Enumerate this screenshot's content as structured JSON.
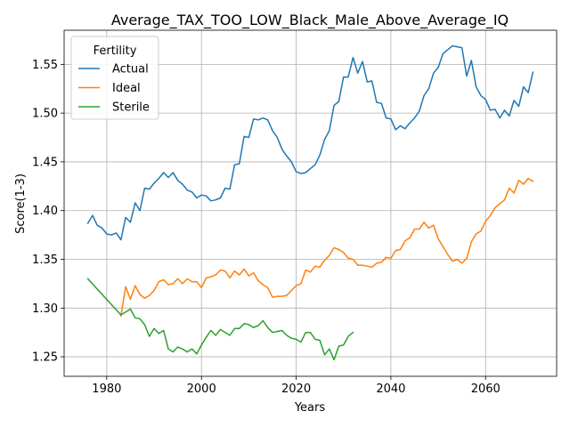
{
  "chart_data": {
    "type": "line",
    "title": "Average_TAX_TOO_LOW_Black_Male_Above_Average_IQ",
    "xlabel": "Years",
    "ylabel": "Score(1-3)",
    "xlim": [
      1971,
      2075
    ],
    "ylim": [
      1.23,
      1.585
    ],
    "xticks": [
      1980,
      2000,
      2020,
      2040,
      2060
    ],
    "yticks": [
      1.25,
      1.3,
      1.35,
      1.4,
      1.45,
      1.5,
      1.55
    ],
    "ytick_labels": [
      "1.25",
      "1.30",
      "1.35",
      "1.40",
      "1.45",
      "1.50",
      "1.55"
    ],
    "grid": true,
    "legend": {
      "title": "Fertility",
      "placement": "top-left"
    },
    "series": [
      {
        "name": "Actual",
        "color": "#1f77b4",
        "x": [
          1976,
          1977,
          1978,
          1979,
          1980,
          1981,
          1982,
          1983,
          1984,
          1985,
          1986,
          1987,
          1988,
          1989,
          1990,
          1991,
          1992,
          1993,
          1994,
          1995,
          1996,
          1997,
          1998,
          1999,
          2000,
          2001,
          2002,
          2003,
          2004,
          2005,
          2006,
          2007,
          2008,
          2009,
          2010,
          2011,
          2012,
          2013,
          2014,
          2015,
          2016,
          2017,
          2018,
          2019,
          2020,
          2021,
          2022,
          2023,
          2024,
          2025,
          2026,
          2027,
          2028,
          2029,
          2030,
          2031,
          2032,
          2033,
          2034,
          2035,
          2036,
          2037,
          2038,
          2039,
          2040,
          2041,
          2042,
          2043,
          2044,
          2045,
          2046,
          2047,
          2048,
          2049,
          2050,
          2051,
          2052,
          2053,
          2054,
          2055,
          2056,
          2057,
          2058,
          2059,
          2060,
          2061,
          2062,
          2063,
          2064,
          2065,
          2066,
          2067,
          2068,
          2069,
          2070
        ],
        "y": [
          1.387,
          1.395,
          1.385,
          1.382,
          1.376,
          1.375,
          1.377,
          1.37,
          1.393,
          1.388,
          1.408,
          1.4,
          1.423,
          1.422,
          1.428,
          1.433,
          1.439,
          1.434,
          1.439,
          1.431,
          1.427,
          1.421,
          1.419,
          1.413,
          1.416,
          1.415,
          1.41,
          1.411,
          1.413,
          1.423,
          1.422,
          1.447,
          1.448,
          1.476,
          1.475,
          1.494,
          1.493,
          1.495,
          1.493,
          1.482,
          1.475,
          1.463,
          1.456,
          1.45,
          1.44,
          1.438,
          1.439,
          1.443,
          1.447,
          1.457,
          1.473,
          1.482,
          1.508,
          1.512,
          1.537,
          1.537,
          1.557,
          1.541,
          1.553,
          1.532,
          1.533,
          1.511,
          1.51,
          1.495,
          1.494,
          1.483,
          1.487,
          1.484,
          1.49,
          1.495,
          1.502,
          1.518,
          1.525,
          1.541,
          1.547,
          1.561,
          1.565,
          1.569,
          1.568,
          1.567,
          1.538,
          1.554,
          1.527,
          1.518,
          1.514,
          1.503,
          1.504,
          1.495,
          1.503,
          1.497,
          1.513,
          1.507,
          1.527,
          1.521,
          1.542
        ]
      },
      {
        "name": "Ideal",
        "color": "#ff7f0e",
        "x": [
          1983,
          1984,
          1985,
          1986,
          1987,
          1988,
          1989,
          1990,
          1991,
          1992,
          1993,
          1994,
          1995,
          1996,
          1997,
          1998,
          1999,
          2000,
          2001,
          2002,
          2003,
          2004,
          2005,
          2006,
          2007,
          2008,
          2009,
          2010,
          2011,
          2012,
          2013,
          2014,
          2015,
          2016,
          2017,
          2018,
          2019,
          2020,
          2021,
          2022,
          2023,
          2024,
          2025,
          2026,
          2027,
          2028,
          2029,
          2030,
          2031,
          2032,
          2033,
          2034,
          2035,
          2036,
          2037,
          2038,
          2039,
          2040,
          2041,
          2042,
          2043,
          2044,
          2045,
          2046,
          2047,
          2048,
          2049,
          2050,
          2051,
          2052,
          2053,
          2054,
          2055,
          2056,
          2057,
          2058,
          2059,
          2060,
          2061,
          2062,
          2063,
          2064,
          2065,
          2066,
          2067,
          2068,
          2069,
          2070
        ],
        "y": [
          1.292,
          1.322,
          1.309,
          1.323,
          1.314,
          1.31,
          1.313,
          1.318,
          1.327,
          1.329,
          1.324,
          1.325,
          1.33,
          1.325,
          1.33,
          1.327,
          1.327,
          1.321,
          1.331,
          1.332,
          1.334,
          1.339,
          1.338,
          1.331,
          1.338,
          1.334,
          1.34,
          1.333,
          1.336,
          1.328,
          1.324,
          1.321,
          1.311,
          1.312,
          1.312,
          1.313,
          1.318,
          1.323,
          1.325,
          1.339,
          1.337,
          1.343,
          1.342,
          1.349,
          1.354,
          1.362,
          1.36,
          1.357,
          1.351,
          1.35,
          1.344,
          1.344,
          1.343,
          1.342,
          1.346,
          1.347,
          1.352,
          1.351,
          1.359,
          1.36,
          1.369,
          1.372,
          1.381,
          1.381,
          1.388,
          1.382,
          1.385,
          1.371,
          1.363,
          1.355,
          1.348,
          1.35,
          1.346,
          1.351,
          1.368,
          1.376,
          1.379,
          1.389,
          1.395,
          1.403,
          1.407,
          1.411,
          1.423,
          1.418,
          1.431,
          1.427,
          1.433,
          1.43
        ]
      },
      {
        "name": "Sterile",
        "color": "#2ca02c",
        "x": [
          1976,
          1983,
          1984,
          1985,
          1986,
          1987,
          1988,
          1989,
          1990,
          1991,
          1992,
          1993,
          1994,
          1995,
          1996,
          1997,
          1998,
          1999,
          2000,
          2001,
          2002,
          2003,
          2004,
          2005,
          2006,
          2007,
          2008,
          2009,
          2010,
          2011,
          2012,
          2013,
          2014,
          2015,
          2016,
          2017,
          2018,
          2019,
          2020,
          2021,
          2022,
          2023,
          2024,
          2025,
          2026,
          2027,
          2028,
          2029,
          2030,
          2031,
          2032
        ],
        "y": [
          1.33,
          1.293,
          1.296,
          1.299,
          1.29,
          1.289,
          1.283,
          1.271,
          1.279,
          1.274,
          1.277,
          1.258,
          1.255,
          1.26,
          1.258,
          1.255,
          1.258,
          1.253,
          1.262,
          1.27,
          1.277,
          1.272,
          1.278,
          1.275,
          1.272,
          1.279,
          1.279,
          1.284,
          1.283,
          1.28,
          1.282,
          1.287,
          1.28,
          1.275,
          1.276,
          1.277,
          1.272,
          1.269,
          1.268,
          1.265,
          1.275,
          1.275,
          1.268,
          1.267,
          1.252,
          1.258,
          1.247,
          1.261,
          1.262,
          1.271,
          1.275
        ]
      }
    ]
  }
}
